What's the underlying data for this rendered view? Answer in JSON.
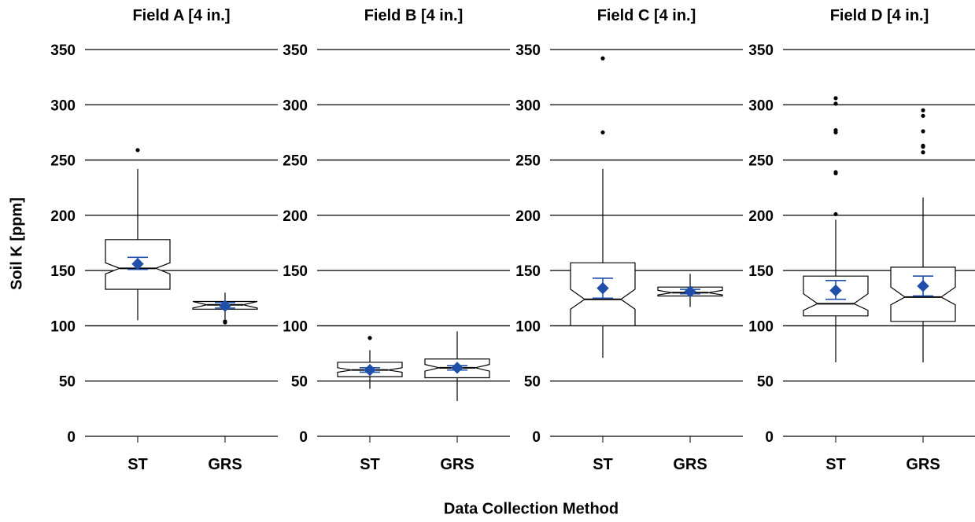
{
  "figure": {
    "ylabel": "Soil K [ppm]",
    "xlabel": "Data Collection Method"
  },
  "colors": {
    "mean_marker": "#1f4fa8",
    "box_line": "#000000",
    "grid": "#000000"
  },
  "chart_data": [
    {
      "type": "boxplot",
      "title": "Field A [4 in.]",
      "categories": [
        "ST",
        "GRS"
      ],
      "ylim": [
        0,
        350
      ],
      "yticks": [
        0,
        50,
        100,
        150,
        200,
        250,
        300,
        350
      ],
      "grid": true,
      "notched": true,
      "boxes": [
        {
          "category": "ST",
          "whisker_low": 105,
          "q1": 133,
          "median": 152,
          "q3": 178,
          "whisker_high": 242,
          "notch_low": 147,
          "notch_high": 157,
          "mean": 156,
          "mean_ci_low": 151,
          "mean_ci_high": 162,
          "outliers": [
            259
          ]
        },
        {
          "category": "GRS",
          "whisker_low": 106,
          "q1": 115,
          "median": 119,
          "q3": 122,
          "whisker_high": 130,
          "notch_low": 116,
          "notch_high": 122,
          "mean": 118,
          "mean_ci_low": 116,
          "mean_ci_high": 121,
          "outliers": [
            103,
            104
          ]
        }
      ]
    },
    {
      "type": "boxplot",
      "title": "Field B [4 in.]",
      "categories": [
        "ST",
        "GRS"
      ],
      "ylim": [
        0,
        350
      ],
      "yticks": [
        0,
        50,
        100,
        150,
        200,
        250,
        300,
        350
      ],
      "grid": true,
      "notched": true,
      "boxes": [
        {
          "category": "ST",
          "whisker_low": 43,
          "q1": 54,
          "median": 60,
          "q3": 67,
          "whisker_high": 78,
          "notch_low": 58,
          "notch_high": 62,
          "mean": 60,
          "mean_ci_low": 58,
          "mean_ci_high": 62,
          "outliers": [
            89
          ]
        },
        {
          "category": "GRS",
          "whisker_low": 32,
          "q1": 53,
          "median": 62,
          "q3": 70,
          "whisker_high": 95,
          "notch_low": 59,
          "notch_high": 65,
          "mean": 62,
          "mean_ci_low": 60,
          "mean_ci_high": 64,
          "outliers": []
        }
      ]
    },
    {
      "type": "boxplot",
      "title": "Field C [4 in.]",
      "categories": [
        "ST",
        "GRS"
      ],
      "ylim": [
        0,
        350
      ],
      "yticks": [
        0,
        50,
        100,
        150,
        200,
        250,
        300,
        350
      ],
      "grid": true,
      "notched": true,
      "boxes": [
        {
          "category": "ST",
          "whisker_low": 71,
          "q1": 100,
          "median": 124,
          "q3": 157,
          "whisker_high": 242,
          "notch_low": 115,
          "notch_high": 133,
          "mean": 134,
          "mean_ci_low": 125,
          "mean_ci_high": 143,
          "outliers": [
            275,
            342
          ]
        },
        {
          "category": "GRS",
          "whisker_low": 117,
          "q1": 127,
          "median": 130,
          "q3": 135,
          "whisker_high": 147,
          "notch_low": 128,
          "notch_high": 132,
          "mean": 131,
          "mean_ci_low": 129,
          "mean_ci_high": 133,
          "outliers": []
        }
      ]
    },
    {
      "type": "boxplot",
      "title": "Field D [4 in.]",
      "categories": [
        "ST",
        "GRS"
      ],
      "ylim": [
        0,
        350
      ],
      "yticks": [
        0,
        50,
        100,
        150,
        200,
        250,
        300,
        350
      ],
      "grid": true,
      "notched": true,
      "boxes": [
        {
          "category": "ST",
          "whisker_low": 67,
          "q1": 109,
          "median": 120,
          "q3": 145,
          "whisker_high": 196,
          "notch_low": 114,
          "notch_high": 129,
          "mean": 132,
          "mean_ci_low": 124,
          "mean_ci_high": 141,
          "outliers": [
            201,
            238,
            239,
            275,
            277,
            301,
            306
          ]
        },
        {
          "category": "GRS",
          "whisker_low": 67,
          "q1": 104,
          "median": 126,
          "q3": 153,
          "whisker_high": 216,
          "notch_low": 119,
          "notch_high": 135,
          "mean": 136,
          "mean_ci_low": 127,
          "mean_ci_high": 145,
          "outliers": [
            257,
            262,
            263,
            276,
            290,
            295
          ]
        }
      ]
    }
  ]
}
